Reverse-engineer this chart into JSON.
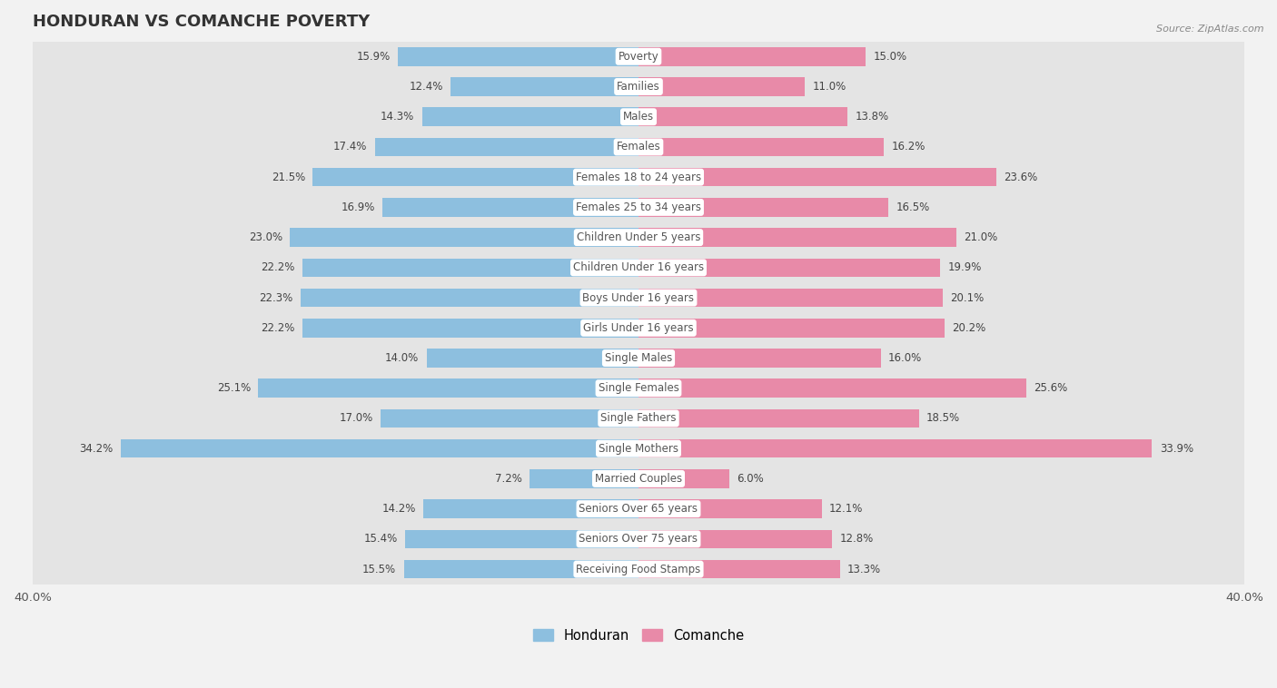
{
  "title": "HONDURAN VS COMANCHE POVERTY",
  "source": "Source: ZipAtlas.com",
  "categories": [
    "Poverty",
    "Families",
    "Males",
    "Females",
    "Females 18 to 24 years",
    "Females 25 to 34 years",
    "Children Under 5 years",
    "Children Under 16 years",
    "Boys Under 16 years",
    "Girls Under 16 years",
    "Single Males",
    "Single Females",
    "Single Fathers",
    "Single Mothers",
    "Married Couples",
    "Seniors Over 65 years",
    "Seniors Over 75 years",
    "Receiving Food Stamps"
  ],
  "honduran": [
    15.9,
    12.4,
    14.3,
    17.4,
    21.5,
    16.9,
    23.0,
    22.2,
    22.3,
    22.2,
    14.0,
    25.1,
    17.0,
    34.2,
    7.2,
    14.2,
    15.4,
    15.5
  ],
  "comanche": [
    15.0,
    11.0,
    13.8,
    16.2,
    23.6,
    16.5,
    21.0,
    19.9,
    20.1,
    20.2,
    16.0,
    25.6,
    18.5,
    33.9,
    6.0,
    12.1,
    12.8,
    13.3
  ],
  "honduran_color": "#8dbfdf",
  "comanche_color": "#e88aa8",
  "background_color": "#f2f2f2",
  "row_color": "#e4e4e4",
  "xlim": 40.0,
  "bar_height": 0.62,
  "legend_honduran": "Honduran",
  "legend_comanche": "Comanche"
}
